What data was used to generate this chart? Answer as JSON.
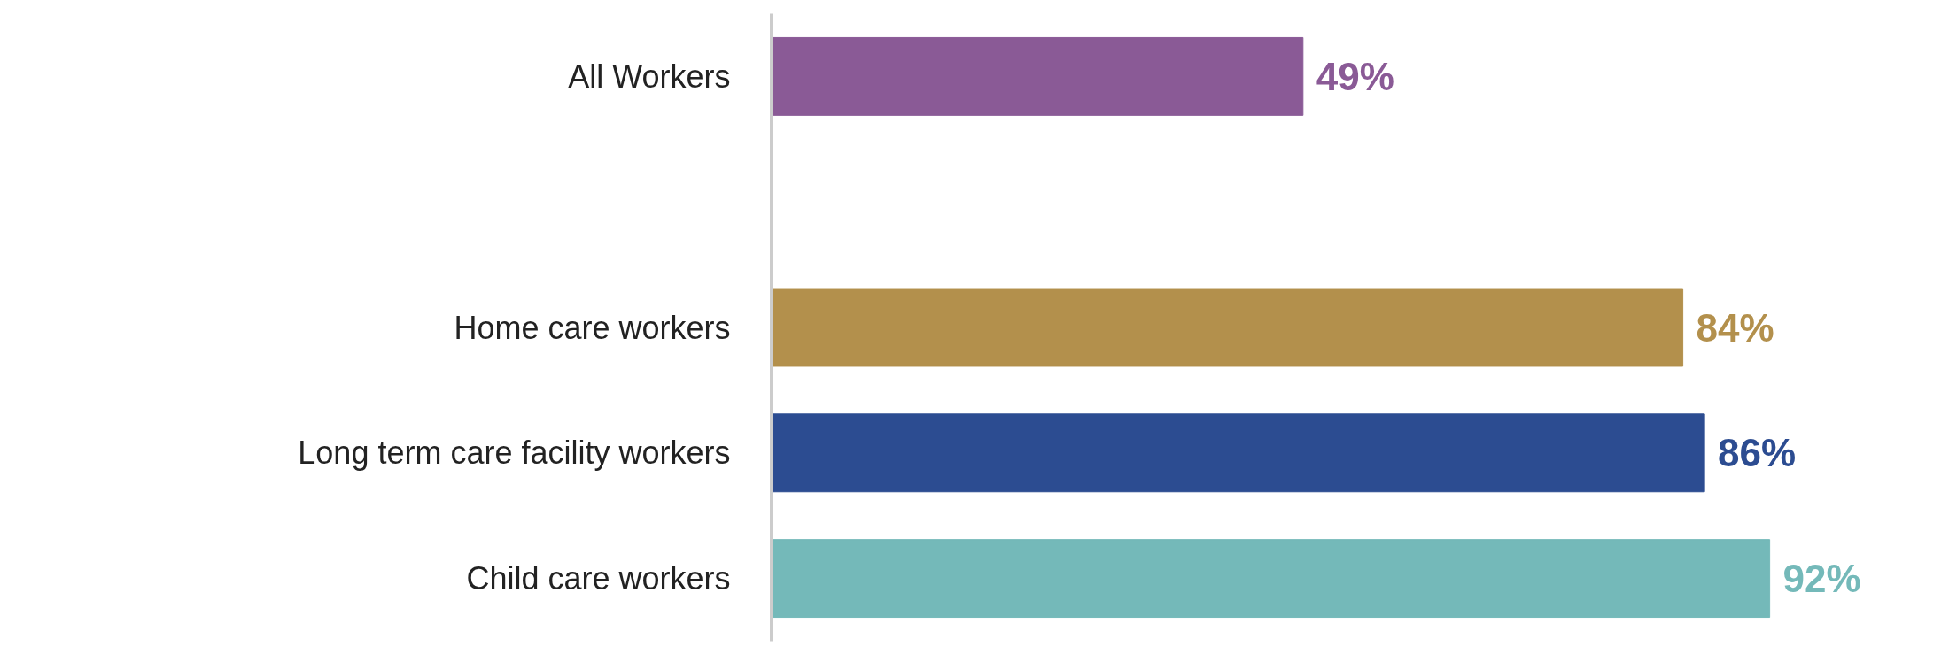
{
  "chart_data": {
    "type": "bar",
    "orientation": "horizontal",
    "categories": [
      "All Workers",
      null,
      "Home care workers",
      "Long term care facility workers",
      "Child care workers"
    ],
    "values": [
      49,
      null,
      84,
      86,
      92
    ],
    "colors": [
      "#8a5a96",
      null,
      "#b3904c",
      "#2c4c91",
      "#74b9b9"
    ],
    "value_labels": [
      "49%",
      null,
      "84%",
      "86%",
      "92%"
    ]
  }
}
